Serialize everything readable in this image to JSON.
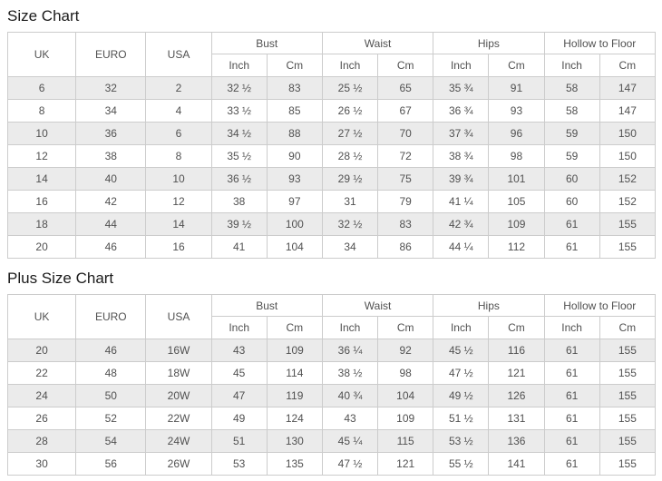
{
  "colors": {
    "stripe": "#ebebeb",
    "border": "#cccccc",
    "text": "#515151",
    "title": "#1b1b1b"
  },
  "columns": {
    "uk": "UK",
    "euro": "EURO",
    "usa": "USA",
    "groups": [
      {
        "label": "Bust"
      },
      {
        "label": "Waist"
      },
      {
        "label": "Hips"
      },
      {
        "label": "Hollow to Floor"
      }
    ],
    "sub": {
      "inch": "Inch",
      "cm": "Cm"
    }
  },
  "size_chart": {
    "title": "Size Chart",
    "rows": [
      [
        "6",
        "32",
        "2",
        "32 ½",
        "83",
        "25 ½",
        "65",
        "35 ¾",
        "91",
        "58",
        "147"
      ],
      [
        "8",
        "34",
        "4",
        "33 ½",
        "85",
        "26 ½",
        "67",
        "36 ¾",
        "93",
        "58",
        "147"
      ],
      [
        "10",
        "36",
        "6",
        "34 ½",
        "88",
        "27 ½",
        "70",
        "37 ¾",
        "96",
        "59",
        "150"
      ],
      [
        "12",
        "38",
        "8",
        "35 ½",
        "90",
        "28 ½",
        "72",
        "38 ¾",
        "98",
        "59",
        "150"
      ],
      [
        "14",
        "40",
        "10",
        "36 ½",
        "93",
        "29 ½",
        "75",
        "39 ¾",
        "101",
        "60",
        "152"
      ],
      [
        "16",
        "42",
        "12",
        "38",
        "97",
        "31",
        "79",
        "41 ¼",
        "105",
        "60",
        "152"
      ],
      [
        "18",
        "44",
        "14",
        "39 ½",
        "100",
        "32 ½",
        "83",
        "42 ¾",
        "109",
        "61",
        "155"
      ],
      [
        "20",
        "46",
        "16",
        "41",
        "104",
        "34",
        "86",
        "44 ¼",
        "112",
        "61",
        "155"
      ]
    ]
  },
  "plus_size_chart": {
    "title": "Plus Size Chart",
    "rows": [
      [
        "20",
        "46",
        "16W",
        "43",
        "109",
        "36 ¼",
        "92",
        "45 ½",
        "116",
        "61",
        "155"
      ],
      [
        "22",
        "48",
        "18W",
        "45",
        "114",
        "38 ½",
        "98",
        "47 ½",
        "121",
        "61",
        "155"
      ],
      [
        "24",
        "50",
        "20W",
        "47",
        "119",
        "40 ¾",
        "104",
        "49 ½",
        "126",
        "61",
        "155"
      ],
      [
        "26",
        "52",
        "22W",
        "49",
        "124",
        "43",
        "109",
        "51 ½",
        "131",
        "61",
        "155"
      ],
      [
        "28",
        "54",
        "24W",
        "51",
        "130",
        "45 ¼",
        "115",
        "53 ½",
        "136",
        "61",
        "155"
      ],
      [
        "30",
        "56",
        "26W",
        "53",
        "135",
        "47 ½",
        "121",
        "55 ½",
        "141",
        "61",
        "155"
      ]
    ]
  }
}
